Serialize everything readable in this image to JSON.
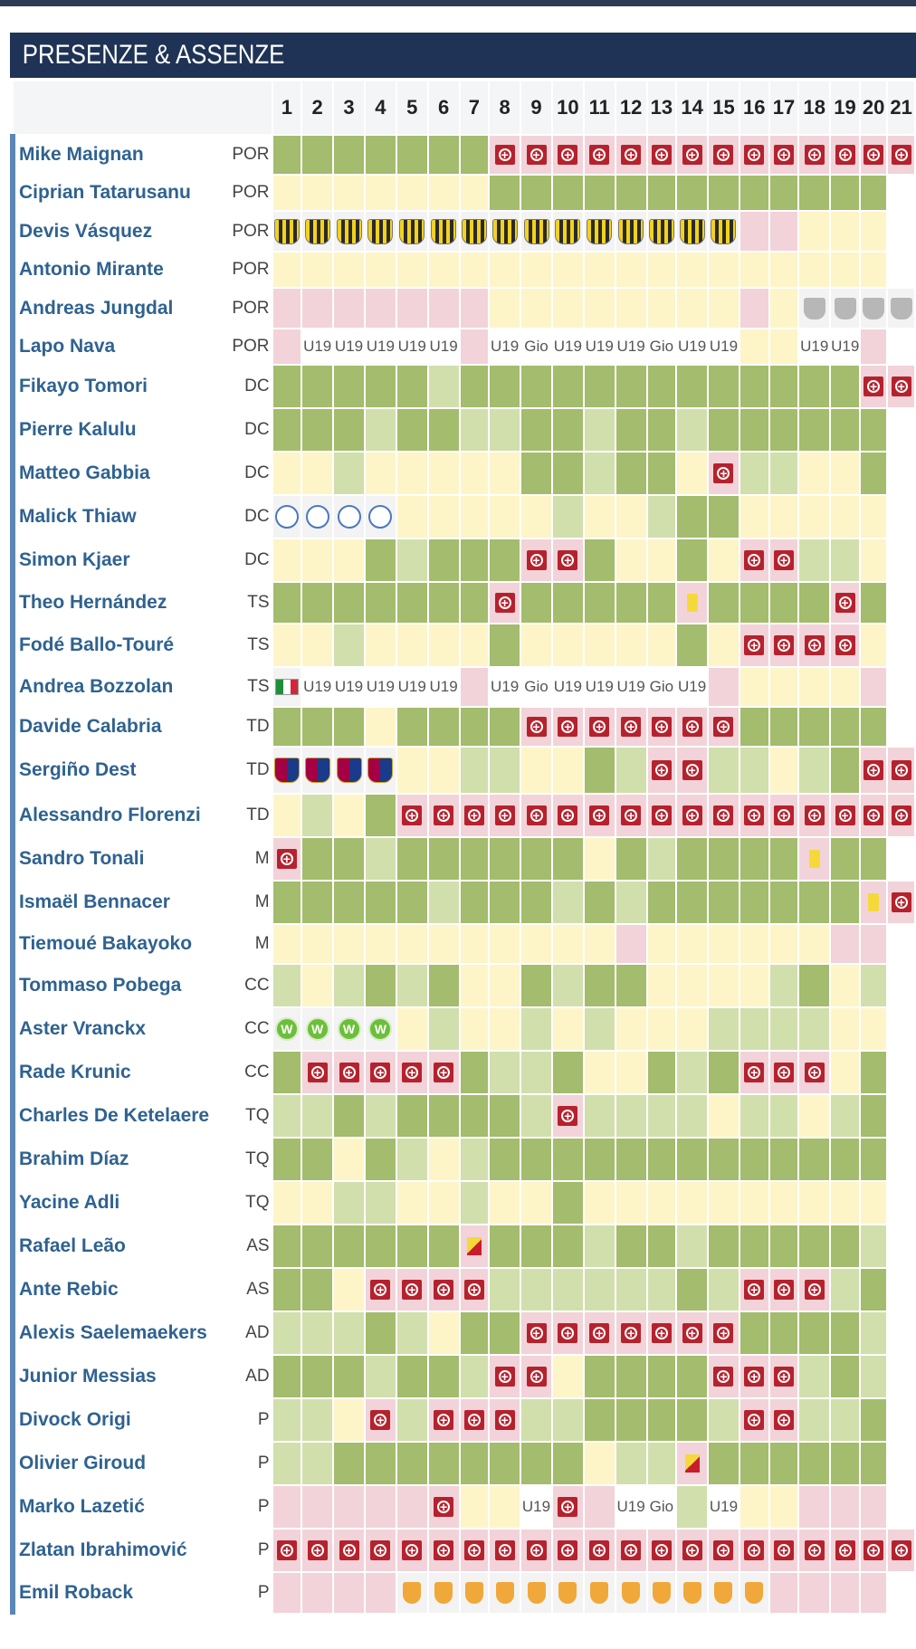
{
  "title": "PRESENZE & ASSENZE",
  "matchdays": [
    "1",
    "2",
    "3",
    "4",
    "5",
    "6",
    "7",
    "8",
    "9",
    "10",
    "11",
    "12",
    "13",
    "14",
    "15",
    "16",
    "17",
    "18",
    "19",
    "20",
    "21"
  ],
  "legend_codes": {
    "G": "played",
    "L": "played-partial",
    "Y": "bench",
    "P": "not-available",
    "W": "empty",
    "O": "other-team",
    "I": "injury-icon",
    "YC": "yellow-card-icon",
    "YR": "yellow-red-card-icon"
  },
  "players": [
    {
      "name": "Mike Maignan",
      "role": "POR",
      "cells": [
        "G",
        "G",
        "G",
        "G",
        "G",
        "G",
        "G",
        "I",
        "I",
        "I",
        "I",
        "I",
        "I",
        "I",
        "I",
        "I",
        "I",
        "I",
        "I",
        "I",
        "I"
      ]
    },
    {
      "name": "Ciprian Tatarusanu",
      "role": "POR",
      "cells": [
        "Y",
        "Y",
        "Y",
        "Y",
        "Y",
        "Y",
        "Y",
        "G",
        "G",
        "G",
        "G",
        "G",
        "G",
        "G",
        "G",
        "G",
        "G",
        "G",
        "G",
        "G",
        "W"
      ]
    },
    {
      "name": "Devis Vásquez",
      "role": "POR",
      "cells": [
        "c:stripe",
        "c:stripe",
        "c:stripe",
        "c:stripe",
        "c:stripe",
        "c:stripe",
        "c:stripe",
        "c:stripe",
        "c:stripe",
        "c:stripe",
        "c:stripe",
        "c:stripe",
        "c:stripe",
        "c:stripe",
        "c:stripe",
        "P",
        "P",
        "Y",
        "Y",
        "Y",
        "W"
      ]
    },
    {
      "name": "Antonio Mirante",
      "role": "POR",
      "cells": [
        "Y",
        "Y",
        "Y",
        "Y",
        "Y",
        "Y",
        "Y",
        "Y",
        "Y",
        "Y",
        "Y",
        "Y",
        "Y",
        "Y",
        "Y",
        "Y",
        "Y",
        "Y",
        "Y",
        "Y",
        "W"
      ]
    },
    {
      "name": "Andreas Jungdal",
      "role": "POR",
      "cells": [
        "P",
        "P",
        "P",
        "P",
        "P",
        "P",
        "P",
        "Y",
        "Y",
        "Y",
        "Y",
        "Y",
        "Y",
        "Y",
        "Y",
        "P",
        "Y",
        "c:grey",
        "c:grey",
        "c:grey",
        "c:grey"
      ]
    },
    {
      "name": "Lapo Nava",
      "role": "POR",
      "cells": [
        "P",
        "t:U19",
        "t:U19",
        "t:U19",
        "t:U19",
        "t:U19",
        "P",
        "t:U19",
        "t:Gio",
        "t:U19",
        "t:U19",
        "t:U19",
        "t:Gio",
        "t:U19",
        "t:U19",
        "Y",
        "Y",
        "t:U19",
        "t:U19",
        "P",
        "W"
      ]
    },
    {
      "name": "Fikayo Tomori",
      "role": "DC",
      "cells": [
        "G",
        "G",
        "G",
        "G",
        "G",
        "L",
        "G",
        "G",
        "G",
        "G",
        "G",
        "G",
        "G",
        "G",
        "G",
        "G",
        "G",
        "G",
        "G",
        "I",
        "I"
      ]
    },
    {
      "name": "Pierre Kalulu",
      "role": "DC",
      "cells": [
        "G",
        "G",
        "G",
        "L",
        "G",
        "G",
        "L",
        "L",
        "G",
        "G",
        "L",
        "G",
        "G",
        "L",
        "G",
        "G",
        "G",
        "G",
        "G",
        "G",
        "W"
      ]
    },
    {
      "name": "Matteo Gabbia",
      "role": "DC",
      "cells": [
        "Y",
        "Y",
        "L",
        "Y",
        "Y",
        "Y",
        "Y",
        "Y",
        "G",
        "G",
        "L",
        "G",
        "G",
        "Y",
        "I",
        "L",
        "L",
        "Y",
        "Y",
        "G",
        "W"
      ]
    },
    {
      "name": "Malick Thiaw",
      "role": "DC",
      "cells": [
        "c:circle",
        "c:circle",
        "c:circle",
        "c:circle",
        "Y",
        "Y",
        "Y",
        "Y",
        "Y",
        "L",
        "Y",
        "Y",
        "L",
        "G",
        "G",
        "Y",
        "Y",
        "Y",
        "Y",
        "Y",
        "W"
      ]
    },
    {
      "name": "Simon Kjaer",
      "role": "DC",
      "cells": [
        "Y",
        "Y",
        "Y",
        "G",
        "L",
        "G",
        "G",
        "G",
        "I",
        "I",
        "G",
        "Y",
        "Y",
        "G",
        "Y",
        "I",
        "I",
        "L",
        "L",
        "Y",
        "W"
      ]
    },
    {
      "name": "Theo Hernández",
      "role": "TS",
      "cells": [
        "G",
        "G",
        "G",
        "G",
        "G",
        "G",
        "G",
        "I",
        "G",
        "G",
        "G",
        "G",
        "G",
        "YC",
        "G",
        "G",
        "G",
        "G",
        "I",
        "G",
        "W"
      ]
    },
    {
      "name": "Fodé Ballo-Touré",
      "role": "TS",
      "cells": [
        "Y",
        "Y",
        "L",
        "Y",
        "Y",
        "Y",
        "Y",
        "G",
        "Y",
        "Y",
        "Y",
        "Y",
        "Y",
        "G",
        "Y",
        "I",
        "I",
        "I",
        "I",
        "Y",
        "W"
      ]
    },
    {
      "name": "Andrea Bozzolan",
      "role": "TS",
      "cells": [
        "flag:it",
        "t:U19",
        "t:U19",
        "t:U19",
        "t:U19",
        "t:U19",
        "P",
        "t:U19",
        "t:Gio",
        "t:U19",
        "t:U19",
        "t:U19",
        "t:Gio",
        "t:U19",
        "P",
        "Y",
        "Y",
        "Y",
        "Y",
        "P",
        "W"
      ]
    },
    {
      "name": "Davide Calabria",
      "role": "TD",
      "cells": [
        "G",
        "G",
        "G",
        "Y",
        "G",
        "G",
        "G",
        "G",
        "I",
        "I",
        "I",
        "I",
        "I",
        "I",
        "I",
        "G",
        "G",
        "G",
        "G",
        "G",
        "W"
      ]
    },
    {
      "name": "Sergiño Dest",
      "role": "TD",
      "cells": [
        "c:barca",
        "c:barca",
        "c:barca",
        "c:barca",
        "Y",
        "Y",
        "L",
        "L",
        "Y",
        "Y",
        "G",
        "L",
        "I",
        "I",
        "L",
        "L",
        "Y",
        "L",
        "G",
        "I",
        "I"
      ]
    },
    {
      "name": "Alessandro Florenzi",
      "role": "TD",
      "cells": [
        "Y",
        "L",
        "Y",
        "G",
        "I",
        "I",
        "I",
        "I",
        "I",
        "I",
        "I",
        "I",
        "I",
        "I",
        "I",
        "I",
        "I",
        "I",
        "I",
        "I",
        "I"
      ]
    },
    {
      "name": "Sandro Tonali",
      "role": "M",
      "cells": [
        "I",
        "G",
        "G",
        "L",
        "G",
        "G",
        "G",
        "G",
        "G",
        "G",
        "Y",
        "G",
        "L",
        "G",
        "G",
        "G",
        "G",
        "YC",
        "G",
        "G",
        "W"
      ]
    },
    {
      "name": "Ismaël Bennacer",
      "role": "M",
      "cells": [
        "G",
        "G",
        "G",
        "G",
        "G",
        "L",
        "G",
        "G",
        "G",
        "L",
        "G",
        "L",
        "G",
        "G",
        "G",
        "G",
        "G",
        "G",
        "G",
        "YC",
        "I"
      ]
    },
    {
      "name": "Tiemoué Bakayoko",
      "role": "M",
      "cells": [
        "Y",
        "Y",
        "Y",
        "Y",
        "Y",
        "Y",
        "Y",
        "Y",
        "Y",
        "Y",
        "Y",
        "P",
        "Y",
        "Y",
        "Y",
        "Y",
        "Y",
        "Y",
        "P",
        "P",
        "W"
      ]
    },
    {
      "name": "Tommaso Pobega",
      "role": "CC",
      "cells": [
        "L",
        "Y",
        "L",
        "G",
        "L",
        "G",
        "Y",
        "Y",
        "G",
        "L",
        "G",
        "G",
        "Y",
        "Y",
        "Y",
        "Y",
        "L",
        "G",
        "Y",
        "L",
        "W"
      ]
    },
    {
      "name": "Aster Vranckx",
      "role": "CC",
      "cells": [
        "c:wolf",
        "c:wolf",
        "c:wolf",
        "c:wolf",
        "Y",
        "L",
        "Y",
        "Y",
        "L",
        "Y",
        "L",
        "Y",
        "Y",
        "Y",
        "L",
        "L",
        "L",
        "L",
        "Y",
        "Y",
        "W"
      ]
    },
    {
      "name": "Rade Krunic",
      "role": "CC",
      "cells": [
        "G",
        "I",
        "I",
        "I",
        "I",
        "I",
        "G",
        "L",
        "L",
        "G",
        "Y",
        "Y",
        "G",
        "L",
        "G",
        "I",
        "I",
        "I",
        "Y",
        "G",
        "W"
      ]
    },
    {
      "name": "Charles De Ketelaere",
      "role": "TQ",
      "cells": [
        "L",
        "L",
        "G",
        "L",
        "G",
        "G",
        "G",
        "G",
        "L",
        "I",
        "L",
        "L",
        "L",
        "L",
        "Y",
        "L",
        "L",
        "Y",
        "L",
        "G",
        "W"
      ]
    },
    {
      "name": "Brahim Díaz",
      "role": "TQ",
      "cells": [
        "G",
        "G",
        "Y",
        "G",
        "L",
        "Y",
        "L",
        "G",
        "G",
        "G",
        "G",
        "G",
        "G",
        "G",
        "G",
        "G",
        "G",
        "G",
        "G",
        "G",
        "W"
      ]
    },
    {
      "name": "Yacine Adli",
      "role": "TQ",
      "cells": [
        "Y",
        "Y",
        "L",
        "L",
        "Y",
        "Y",
        "L",
        "Y",
        "Y",
        "G",
        "Y",
        "Y",
        "Y",
        "Y",
        "Y",
        "Y",
        "Y",
        "Y",
        "Y",
        "Y",
        "W"
      ]
    },
    {
      "name": "Rafael Leão",
      "role": "AS",
      "cells": [
        "G",
        "G",
        "G",
        "G",
        "G",
        "G",
        "YR",
        "G",
        "G",
        "G",
        "L",
        "G",
        "G",
        "L",
        "G",
        "G",
        "G",
        "G",
        "G",
        "L",
        "W"
      ]
    },
    {
      "name": "Ante Rebic",
      "role": "AS",
      "cells": [
        "G",
        "G",
        "Y",
        "I",
        "I",
        "I",
        "I",
        "L",
        "L",
        "L",
        "L",
        "L",
        "L",
        "G",
        "L",
        "I",
        "I",
        "I",
        "L",
        "G",
        "W"
      ]
    },
    {
      "name": "Alexis Saelemaekers",
      "role": "AD",
      "cells": [
        "L",
        "L",
        "L",
        "G",
        "L",
        "Y",
        "G",
        "G",
        "I",
        "I",
        "I",
        "I",
        "I",
        "I",
        "I",
        "G",
        "G",
        "G",
        "G",
        "L",
        "W"
      ]
    },
    {
      "name": "Junior Messias",
      "role": "AD",
      "cells": [
        "G",
        "G",
        "G",
        "L",
        "G",
        "G",
        "L",
        "I",
        "I",
        "Y",
        "G",
        "G",
        "G",
        "G",
        "I",
        "I",
        "I",
        "L",
        "G",
        "L",
        "W"
      ]
    },
    {
      "name": "Divock Origi",
      "role": "P",
      "cells": [
        "L",
        "L",
        "Y",
        "I",
        "L",
        "I",
        "I",
        "I",
        "L",
        "L",
        "G",
        "G",
        "G",
        "G",
        "L",
        "I",
        "I",
        "L",
        "L",
        "G",
        "W"
      ]
    },
    {
      "name": "Olivier Giroud",
      "role": "P",
      "cells": [
        "L",
        "L",
        "G",
        "G",
        "G",
        "G",
        "G",
        "G",
        "G",
        "G",
        "Y",
        "L",
        "L",
        "YR",
        "G",
        "G",
        "G",
        "G",
        "G",
        "G",
        "W"
      ]
    },
    {
      "name": "Marko Lazetić",
      "role": "P",
      "cells": [
        "P",
        "P",
        "P",
        "P",
        "P",
        "I",
        "Y",
        "Y",
        "t:U19",
        "I",
        "P",
        "t:U19",
        "t:Gio",
        "L",
        "t:U19",
        "Y",
        "Y",
        "P",
        "P",
        "P",
        "W"
      ]
    },
    {
      "name": "Zlatan Ibrahimović",
      "role": "P",
      "cells": [
        "I",
        "I",
        "I",
        "I",
        "I",
        "I",
        "I",
        "I",
        "I",
        "I",
        "I",
        "I",
        "I",
        "I",
        "I",
        "I",
        "I",
        "I",
        "I",
        "I",
        "I"
      ]
    },
    {
      "name": "Emil Roback",
      "role": "P",
      "cells": [
        "P",
        "P",
        "P",
        "P",
        "c:shield",
        "c:shield",
        "c:shield",
        "c:shield",
        "c:shield",
        "c:shield",
        "c:shield",
        "c:shield",
        "c:shield",
        "c:shield",
        "c:shield",
        "c:shield",
        "P",
        "P",
        "P",
        "P",
        "W"
      ]
    }
  ]
}
